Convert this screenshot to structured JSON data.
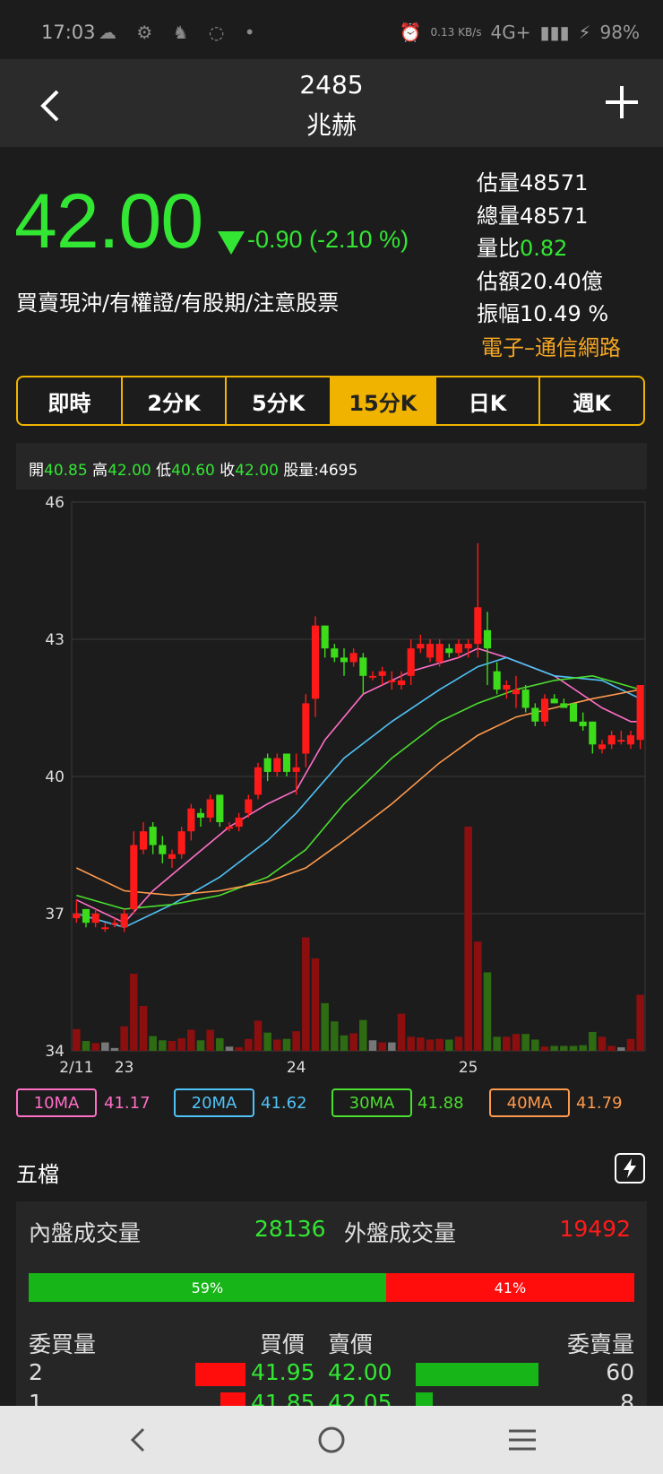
{
  "status": {
    "time": "17:03",
    "left_icons": "☁ ⚙ ♞ ◌ •",
    "net": "4G+",
    "battery": "98%",
    "speed": "0.13 KB/s"
  },
  "header": {
    "code": "2485",
    "name": "兆赫"
  },
  "quote": {
    "price": "42.00",
    "change": "-0.90 (-2.10 %)",
    "tags": "買賣現沖/有權證/有股期/注意股票"
  },
  "stats": [
    {
      "label": "估量",
      "value": "48571"
    },
    {
      "label": "總量",
      "value": "48571"
    },
    {
      "label": "量比",
      "value": "0.82"
    },
    {
      "label": "估額",
      "value": "20.40億"
    },
    {
      "label": "振幅",
      "value": "10.49 %"
    }
  ],
  "industry": "電子–通信網路",
  "tabs": [
    "即時",
    "2分K",
    "5分K",
    "15分K",
    "日K",
    "週K"
  ],
  "active_tab": "15分K",
  "ohlc": {
    "open_label": "開",
    "open": "40.85",
    "high_label": "高",
    "high": "42.00",
    "low_label": "低",
    "low": "40.60",
    "close_label": "收",
    "close": "42.00",
    "vol_label": "股量:",
    "vol": "4695"
  },
  "chart_data": {
    "type": "candlestick",
    "ylim": [
      34,
      46
    ],
    "yticks": [
      "46",
      "43",
      "40",
      "37",
      "34"
    ],
    "xticks": [
      {
        "label": "2/11",
        "index": 0
      },
      {
        "label": "23",
        "index": 5
      },
      {
        "label": "24",
        "index": 23
      },
      {
        "label": "25",
        "index": 41
      }
    ],
    "candles": [
      [
        36.9,
        37.3,
        36.8,
        37.0
      ],
      [
        37.1,
        37.1,
        36.7,
        36.8
      ],
      [
        36.8,
        37.1,
        36.7,
        37.0
      ],
      [
        36.7,
        36.8,
        36.6,
        36.7
      ],
      [
        36.8,
        36.9,
        36.7,
        36.8
      ],
      [
        36.7,
        37.1,
        36.6,
        37.0
      ],
      [
        37.1,
        38.8,
        37.0,
        38.5
      ],
      [
        38.4,
        39.0,
        38.3,
        38.8
      ],
      [
        38.9,
        39.0,
        38.3,
        38.5
      ],
      [
        38.5,
        38.7,
        38.1,
        38.3
      ],
      [
        38.2,
        38.4,
        38.0,
        38.3
      ],
      [
        38.3,
        38.9,
        38.2,
        38.8
      ],
      [
        38.8,
        39.4,
        38.6,
        39.3
      ],
      [
        39.2,
        39.3,
        38.9,
        39.1
      ],
      [
        39.1,
        39.6,
        39.0,
        39.5
      ],
      [
        39.6,
        39.6,
        38.9,
        39.0
      ],
      [
        38.9,
        39.0,
        38.8,
        38.9
      ],
      [
        38.9,
        39.2,
        38.8,
        39.1
      ],
      [
        39.2,
        39.6,
        39.1,
        39.5
      ],
      [
        39.6,
        40.3,
        39.5,
        40.2
      ],
      [
        40.4,
        40.5,
        39.9,
        40.1
      ],
      [
        40.1,
        40.5,
        40.0,
        40.4
      ],
      [
        40.5,
        40.5,
        40.0,
        40.1
      ],
      [
        40.1,
        40.5,
        39.6,
        40.2
      ],
      [
        40.5,
        41.8,
        40.2,
        41.6
      ],
      [
        41.7,
        43.5,
        41.3,
        43.3
      ],
      [
        43.3,
        43.3,
        42.6,
        42.8
      ],
      [
        42.8,
        42.9,
        42.5,
        42.6
      ],
      [
        42.6,
        42.8,
        42.2,
        42.5
      ],
      [
        42.5,
        42.8,
        42.4,
        42.7
      ],
      [
        42.6,
        42.7,
        41.8,
        42.2
      ],
      [
        42.2,
        42.3,
        42.1,
        42.2
      ],
      [
        42.2,
        42.4,
        42.0,
        42.3
      ],
      [
        42.1,
        42.3,
        41.9,
        42.1
      ],
      [
        42.0,
        42.3,
        41.9,
        42.1
      ],
      [
        42.2,
        43.0,
        42.0,
        42.8
      ],
      [
        42.8,
        43.1,
        42.7,
        42.9
      ],
      [
        42.6,
        43.0,
        42.5,
        42.9
      ],
      [
        42.5,
        43.0,
        42.4,
        42.9
      ],
      [
        42.8,
        42.9,
        42.6,
        42.7
      ],
      [
        42.7,
        43.0,
        42.6,
        42.9
      ],
      [
        42.8,
        43.0,
        42.6,
        42.9
      ],
      [
        42.9,
        45.1,
        42.6,
        43.7
      ],
      [
        43.2,
        43.6,
        42.0,
        42.8
      ],
      [
        42.3,
        42.5,
        41.8,
        41.9
      ],
      [
        41.9,
        42.1,
        41.7,
        42.0
      ],
      [
        41.8,
        42.2,
        41.5,
        41.9
      ],
      [
        41.9,
        42.0,
        41.4,
        41.5
      ],
      [
        41.5,
        41.6,
        41.1,
        41.2
      ],
      [
        41.2,
        41.8,
        41.1,
        41.7
      ],
      [
        41.7,
        41.8,
        41.6,
        41.6
      ],
      [
        41.6,
        41.7,
        41.5,
        41.5
      ],
      [
        41.6,
        41.6,
        41.2,
        41.2
      ],
      [
        41.2,
        41.4,
        41.0,
        41.1
      ],
      [
        41.2,
        41.2,
        40.5,
        40.7
      ],
      [
        40.6,
        40.8,
        40.5,
        40.7
      ],
      [
        40.7,
        41.0,
        40.6,
        40.9
      ],
      [
        40.8,
        41.0,
        40.7,
        40.8
      ],
      [
        40.7,
        41.0,
        40.6,
        40.9
      ],
      [
        40.8,
        42.0,
        40.6,
        42.0
      ]
    ],
    "volume": [
      310,
      140,
      110,
      120,
      40,
      350,
      1100,
      640,
      210,
      150,
      140,
      180,
      300,
      150,
      300,
      180,
      60,
      50,
      170,
      430,
      260,
      160,
      170,
      280,
      1620,
      1320,
      680,
      420,
      220,
      250,
      440,
      150,
      120,
      120,
      530,
      200,
      190,
      160,
      170,
      160,
      200,
      3200,
      1560,
      1120,
      200,
      200,
      240,
      240,
      160,
      60,
      70,
      70,
      70,
      80,
      270,
      200,
      70,
      50,
      170,
      800
    ],
    "ma": [
      {
        "name": "10MA",
        "value": "41.17",
        "color": "#ff6ec7",
        "points": [
          [
            0,
            37.3
          ],
          [
            5,
            36.8
          ],
          [
            8,
            37.5
          ],
          [
            12,
            38.2
          ],
          [
            16,
            38.9
          ],
          [
            20,
            39.4
          ],
          [
            23,
            39.7
          ],
          [
            26,
            40.8
          ],
          [
            30,
            41.8
          ],
          [
            35,
            42.3
          ],
          [
            40,
            42.6
          ],
          [
            42,
            42.8
          ],
          [
            45,
            42.6
          ],
          [
            50,
            42.2
          ],
          [
            55,
            41.5
          ],
          [
            58,
            41.2
          ],
          [
            59,
            41.2
          ]
        ]
      },
      {
        "name": "20MA",
        "value": "41.62",
        "color": "#4fc3f7",
        "points": [
          [
            0,
            37.0
          ],
          [
            5,
            36.7
          ],
          [
            10,
            37.2
          ],
          [
            15,
            37.8
          ],
          [
            20,
            38.6
          ],
          [
            23,
            39.2
          ],
          [
            28,
            40.4
          ],
          [
            33,
            41.2
          ],
          [
            38,
            41.9
          ],
          [
            42,
            42.4
          ],
          [
            45,
            42.6
          ],
          [
            50,
            42.2
          ],
          [
            55,
            42.1
          ],
          [
            59,
            41.7
          ]
        ]
      },
      {
        "name": "30MA",
        "value": "41.88",
        "color": "#4ade2e",
        "points": [
          [
            0,
            37.4
          ],
          [
            5,
            37.1
          ],
          [
            10,
            37.2
          ],
          [
            15,
            37.4
          ],
          [
            20,
            37.8
          ],
          [
            24,
            38.4
          ],
          [
            28,
            39.4
          ],
          [
            33,
            40.4
          ],
          [
            38,
            41.2
          ],
          [
            42,
            41.6
          ],
          [
            46,
            41.9
          ],
          [
            50,
            42.1
          ],
          [
            54,
            42.2
          ],
          [
            59,
            41.9
          ]
        ]
      },
      {
        "name": "40MA",
        "value": "41.79",
        "color": "#ff9a4d",
        "points": [
          [
            0,
            38.0
          ],
          [
            5,
            37.5
          ],
          [
            10,
            37.4
          ],
          [
            15,
            37.5
          ],
          [
            20,
            37.7
          ],
          [
            24,
            38.0
          ],
          [
            28,
            38.6
          ],
          [
            33,
            39.4
          ],
          [
            38,
            40.3
          ],
          [
            42,
            40.9
          ],
          [
            46,
            41.3
          ],
          [
            50,
            41.5
          ],
          [
            54,
            41.7
          ],
          [
            59,
            41.9
          ]
        ]
      }
    ]
  },
  "book": {
    "title": "五檔",
    "inner_label": "內盤成交量",
    "inner_value": "28136",
    "outer_label": "外盤成交量",
    "outer_value": "19492",
    "inner_pct": 59,
    "inner_pct_text": "59%",
    "outer_pct": 41,
    "outer_pct_text": "41%",
    "headers": {
      "bid_qty": "委買量",
      "bid": "買價",
      "ask": "賣價",
      "ask_qty": "委賣量"
    },
    "rows": [
      {
        "bid_qty": "2",
        "bid": "41.95",
        "ask": "42.00",
        "ask_qty": "60",
        "bid_bar": 0.28,
        "ask_bar": 0.72
      },
      {
        "bid_qty": "1",
        "bid": "41.85",
        "ask": "42.05",
        "ask_qty": "8",
        "bid_bar": 0.14,
        "ask_bar": 0.1
      }
    ]
  }
}
